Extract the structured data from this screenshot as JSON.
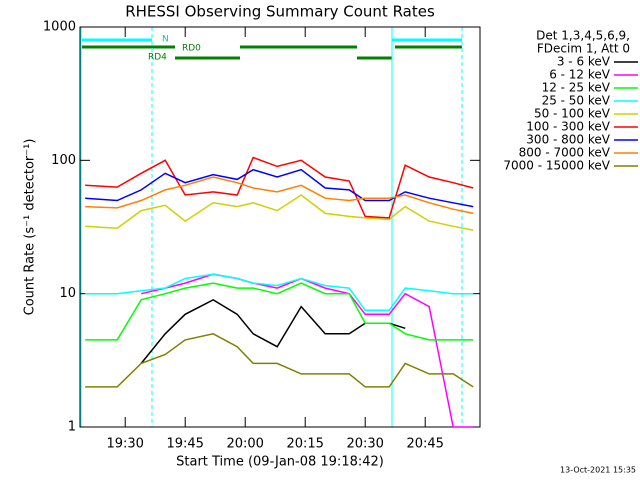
{
  "chart_data": {
    "type": "line",
    "title": "RHESSI Observing Summary Count Rates",
    "x_label": "Start Time (09-Jan-08 19:18:42)",
    "y_label": "Count Rate (s⁻¹ detector⁻¹)",
    "legend_header": [
      "Det 1,3,4,5,6,9,",
      "FDecim 1, Att 0"
    ],
    "footer": "13-Oct-2021 15:35",
    "annotations": [
      "N",
      "RD0",
      "RD4"
    ],
    "log_y": true,
    "xlim": [
      1158.7,
      1258.7
    ],
    "xticks": [
      {
        "value": 1170,
        "label": "19:30"
      },
      {
        "value": 1185,
        "label": "19:45"
      },
      {
        "value": 1200,
        "label": "20:00"
      },
      {
        "value": 1215,
        "label": "20:15"
      },
      {
        "value": 1230,
        "label": "20:30"
      },
      {
        "value": 1245,
        "label": "20:45"
      }
    ],
    "ylim": [
      1,
      1000
    ],
    "yticks": [
      1,
      10,
      100,
      1000
    ],
    "x": [
      1160,
      1168,
      1174,
      1180,
      1185,
      1192,
      1198,
      1202,
      1208,
      1214,
      1220,
      1226,
      1230,
      1236,
      1240,
      1246,
      1252,
      1257
    ],
    "series": [
      {
        "name": "3 - 6 keV",
        "color": "#000000",
        "values": [
          null,
          null,
          3,
          5,
          7,
          9,
          7,
          5,
          4,
          8,
          5,
          5,
          6,
          6,
          5.5,
          null,
          null,
          null
        ]
      },
      {
        "name": "6 - 12 keV",
        "color": "#ff00ff",
        "values": [
          null,
          null,
          10,
          11,
          12,
          14,
          13,
          12,
          11,
          13,
          11,
          10,
          7,
          7,
          10,
          8,
          1,
          1
        ]
      },
      {
        "name": "12 - 25 keV",
        "color": "#00ff00",
        "values": [
          4.5,
          4.5,
          9,
          10,
          11,
          12,
          11,
          11,
          10,
          12,
          10,
          10,
          6,
          6,
          5,
          4.5,
          4.5,
          4.5
        ]
      },
      {
        "name": "25 - 50 keV",
        "color": "#00ffff",
        "values": [
          10,
          10,
          10.5,
          11,
          13,
          14,
          13,
          12,
          11.5,
          13,
          11.5,
          11,
          7.5,
          7.5,
          11,
          10.5,
          10,
          10
        ]
      },
      {
        "name": "50 - 100 keV",
        "color": "#d0d000",
        "values": [
          32,
          31,
          42,
          46,
          35,
          48,
          45,
          48,
          42,
          55,
          40,
          38,
          37,
          36,
          45,
          35,
          32,
          30
        ]
      },
      {
        "name": "100 - 300 keV",
        "color": "#ff0000",
        "values": [
          65,
          63,
          80,
          100,
          55,
          58,
          55,
          105,
          90,
          100,
          75,
          70,
          38,
          37,
          92,
          75,
          68,
          62
        ]
      },
      {
        "name": "300 - 800 keV",
        "color": "#0000ff",
        "values": [
          52,
          50,
          60,
          80,
          68,
          78,
          72,
          85,
          75,
          85,
          62,
          60,
          50,
          50,
          58,
          52,
          48,
          45
        ]
      },
      {
        "name": "800 - 7000 keV",
        "color": "#ff8000",
        "values": [
          45,
          44,
          50,
          60,
          65,
          75,
          68,
          62,
          58,
          65,
          52,
          50,
          52,
          52,
          55,
          48,
          43,
          40
        ]
      },
      {
        "name": "7000 - 15000 keV",
        "color": "#808000",
        "values": [
          2,
          2,
          3,
          3.5,
          4.5,
          5,
          4,
          3,
          3,
          2.5,
          2.5,
          2.5,
          2,
          2,
          3,
          2.5,
          2.5,
          2
        ]
      }
    ]
  }
}
